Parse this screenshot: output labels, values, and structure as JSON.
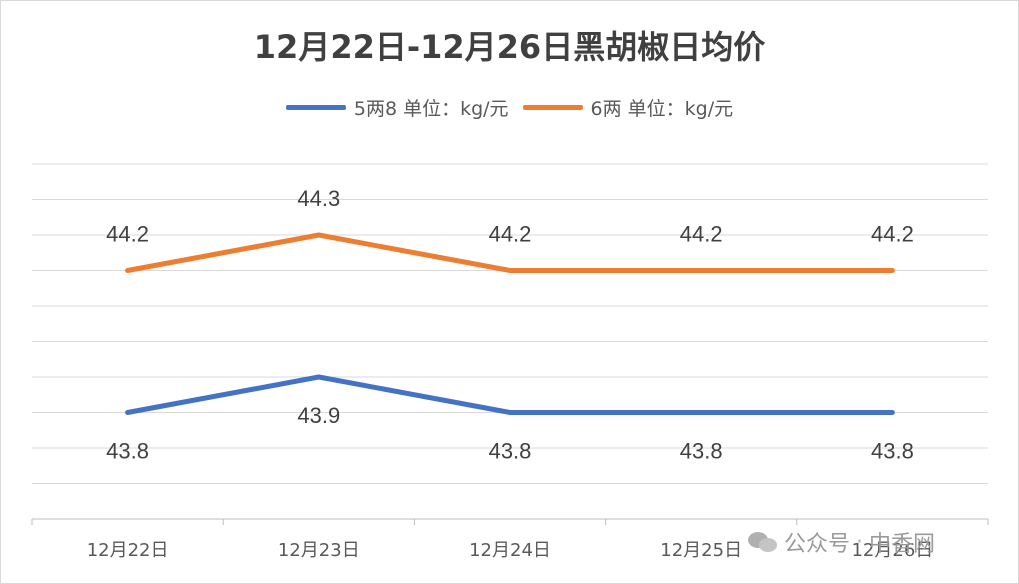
{
  "chart_data": {
    "type": "line",
    "title": "12月22日-12月26日黑胡椒日均价",
    "categories": [
      "12月22日",
      "12月23日",
      "12月24日",
      "12月25日",
      "12月26日"
    ],
    "series": [
      {
        "name": "5两8 单位：kg/元",
        "values": [
          43.8,
          43.9,
          43.8,
          43.8,
          43.8
        ],
        "color": "#4472c4",
        "label_position": "below"
      },
      {
        "name": "6两 单位：kg/元",
        "values": [
          44.2,
          44.3,
          44.2,
          44.2,
          44.2
        ],
        "color": "#ed7d31",
        "label_position": "above"
      }
    ],
    "ylim": [
      43.5,
      44.5
    ],
    "ytick_step": 0.1,
    "grid": true,
    "legend": "top-center",
    "xlabel": "",
    "ylabel": ""
  },
  "watermark": {
    "icon": "wechat-icon",
    "account": "公众号",
    "separator": "·",
    "name": "中香网"
  }
}
